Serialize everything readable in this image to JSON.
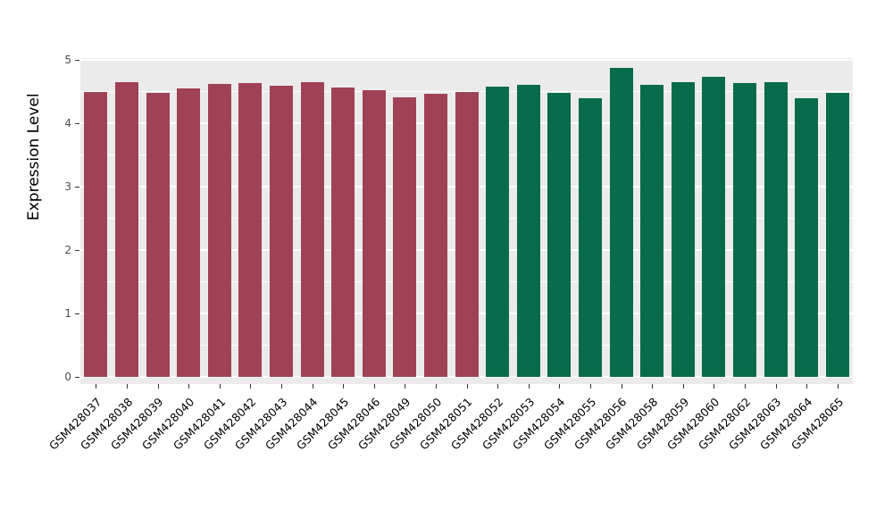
{
  "chart_data": {
    "type": "bar",
    "title": "",
    "xlabel": "",
    "ylabel": "Expression Level",
    "ylim": [
      0,
      5
    ],
    "yticks": [
      0,
      1,
      2,
      3,
      4,
      5
    ],
    "grid": "on",
    "legend_position": "none",
    "panel_background": "#EBEBEB",
    "gridline_color": "#FFFFFF",
    "categories": [
      "GSM428037",
      "GSM428038",
      "GSM428039",
      "GSM428040",
      "GSM428041",
      "GSM428042",
      "GSM428043",
      "GSM428044",
      "GSM428045",
      "GSM428046",
      "GSM428049",
      "GSM428050",
      "GSM428051",
      "GSM428052",
      "GSM428053",
      "GSM428054",
      "GSM428055",
      "GSM428056",
      "GSM428058",
      "GSM428059",
      "GSM428060",
      "GSM428062",
      "GSM428063",
      "GSM428064",
      "GSM428065"
    ],
    "values": [
      4.5,
      4.65,
      4.48,
      4.55,
      4.62,
      4.64,
      4.59,
      4.65,
      4.57,
      4.52,
      4.41,
      4.47,
      4.5,
      4.58,
      4.6,
      4.48,
      4.39,
      4.88,
      4.6,
      4.65,
      4.73,
      4.64,
      4.65,
      4.39,
      4.48
    ],
    "group_split_index": 13,
    "colors": {
      "group1": "#A04255",
      "group2": "#086B4B"
    }
  }
}
